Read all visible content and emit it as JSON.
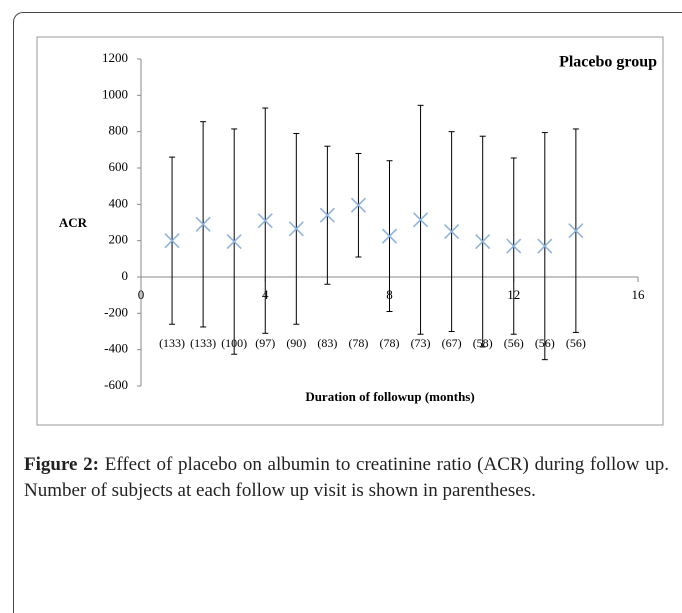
{
  "chart_data": {
    "type": "errorbar",
    "title": "Placebo group",
    "x_label": "Duration of followup (months)",
    "y_label": "ACR",
    "x": [
      1,
      2,
      3,
      4,
      5,
      6,
      7,
      8,
      9,
      10,
      11,
      12,
      13,
      14
    ],
    "values": [
      200,
      290,
      195,
      310,
      265,
      340,
      395,
      225,
      315,
      250,
      195,
      170,
      170,
      255
    ],
    "errors": [
      460,
      565,
      620,
      620,
      525,
      380,
      285,
      415,
      630,
      550,
      580,
      485,
      625,
      560
    ],
    "subject_counts": [
      "(133)",
      "(133)",
      "(100)",
      "(97)",
      "(90)",
      "(83)",
      "(78)",
      "(78)",
      "(73)",
      "(67)",
      "(58)",
      "(56)",
      "(56)",
      "(56)"
    ],
    "marker_color": "#8fb4de",
    "xlim": [
      0,
      16
    ],
    "xticks": [
      0,
      4,
      8,
      12,
      16
    ],
    "ylim": [
      -600,
      1200
    ],
    "yticks": [
      -600,
      -400,
      -200,
      0,
      200,
      400,
      600,
      800,
      1000,
      1200
    ]
  },
  "caption": {
    "label": "Figure 2:",
    "text": "Effect of placebo on albumin to creatinine ratio (ACR) during follow up. Number of subjects at each follow up visit is shown in parentheses."
  }
}
